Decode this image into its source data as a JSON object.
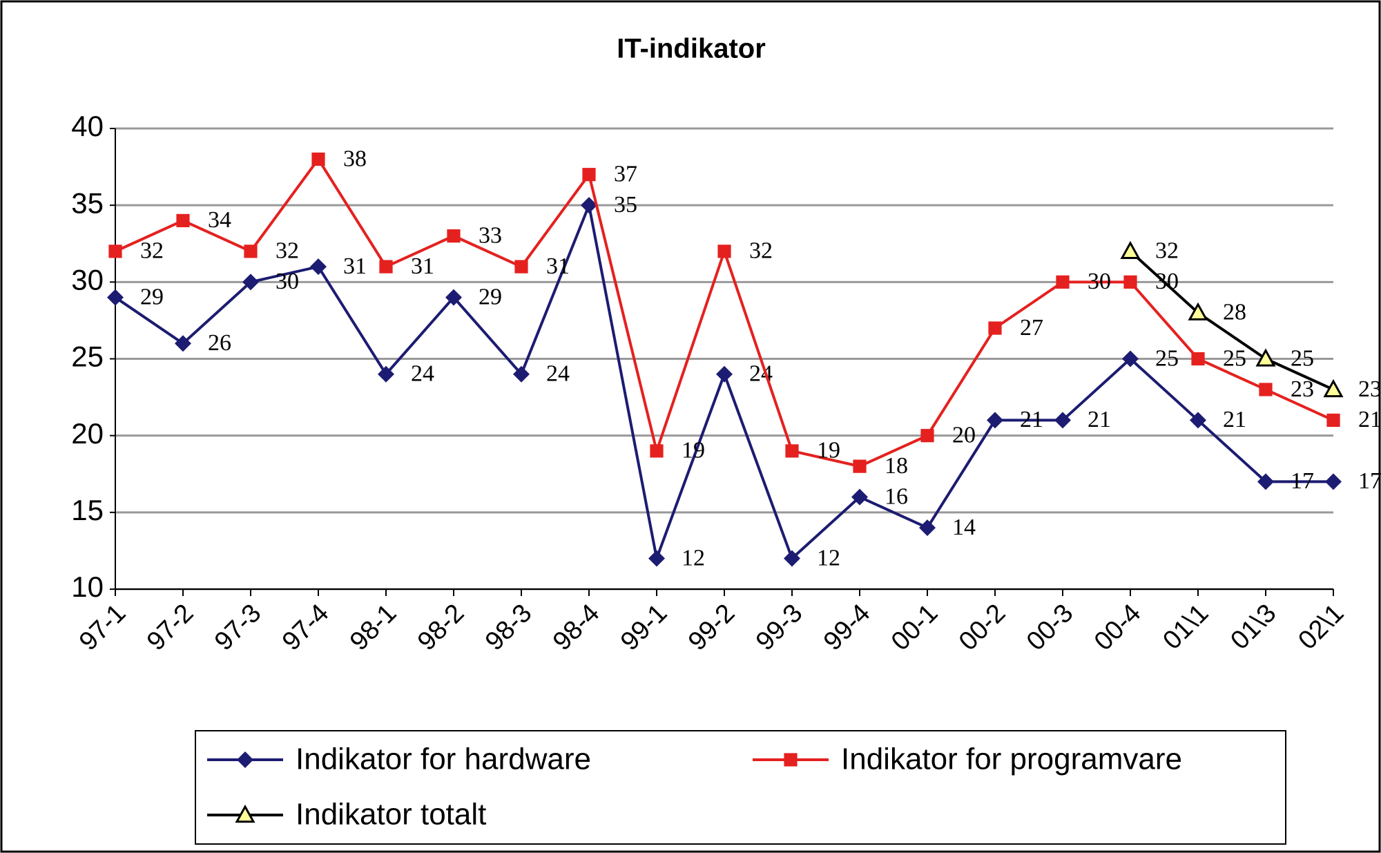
{
  "chart_data": {
    "type": "line",
    "title": "IT-indikator",
    "categories": [
      "97-1",
      "97-2",
      "97-3",
      "97-4",
      "98-1",
      "98-2",
      "98-3",
      "98-4",
      "99-1",
      "99-2",
      "99-3",
      "99-4",
      "00-1",
      "00-2",
      "00-3",
      "00-4",
      "01\\1",
      "01\\3",
      "02\\1"
    ],
    "series": [
      {
        "name": "Indikator for hardware",
        "color": "#1c1c72",
        "marker": "diamond",
        "values": [
          29,
          26,
          30,
          31,
          24,
          29,
          24,
          35,
          12,
          24,
          12,
          16,
          14,
          21,
          21,
          25,
          21,
          17,
          17
        ]
      },
      {
        "name": "Indikator for programvare",
        "color": "#e4211f",
        "marker": "square",
        "values": [
          32,
          34,
          32,
          38,
          31,
          33,
          31,
          37,
          19,
          32,
          19,
          18,
          20,
          27,
          30,
          30,
          25,
          23,
          21
        ]
      },
      {
        "name": "Indikator totalt",
        "color": "#000000",
        "marker": "triangle",
        "values": [
          null,
          null,
          null,
          null,
          null,
          null,
          null,
          null,
          null,
          null,
          null,
          null,
          null,
          null,
          null,
          32,
          28,
          25,
          23
        ]
      }
    ],
    "ylim": [
      10,
      40
    ],
    "yticks": [
      10,
      15,
      20,
      25,
      30,
      35,
      40
    ],
    "grid": true
  }
}
